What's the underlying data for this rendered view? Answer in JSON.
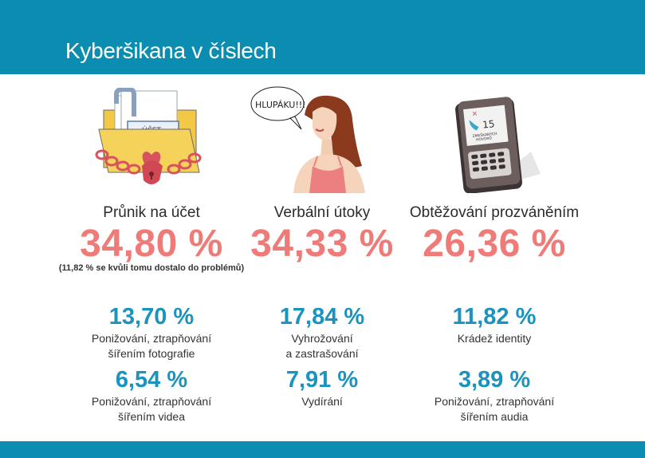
{
  "header": {
    "title": "Kyberšikana v číslech"
  },
  "colors": {
    "header_bg": "#0a8db0",
    "big_pct": "#ef7b78",
    "small_pct": "#1a93be"
  },
  "columns": [
    {
      "icon": "locked-folder-icon",
      "icon_text": {
        "title": "ÚČET",
        "field1": "JMÉNO",
        "field2": "HESLO"
      },
      "label": "Průnik na účet",
      "percent": "34,80 %",
      "note": "(11,82 % se kvůli tomu dostalo do problémů)"
    },
    {
      "icon": "woman-speech-bubble-icon",
      "icon_text": {
        "bubble": "HLUPÁKU!!!"
      },
      "label": "Verbální útoky",
      "percent": "34,33 %"
    },
    {
      "icon": "phone-missed-calls-icon",
      "icon_text": {
        "count": "15",
        "line1": "ZMEŠKANÝCH",
        "line2": "HOVORŮ"
      },
      "label": "Obtěžování prozváněním",
      "percent": "26,36 %"
    }
  ],
  "stats": [
    {
      "value": "13,70 %",
      "line1": "Ponižování, ztrapňování",
      "line2": "šířením fotografie"
    },
    {
      "value": "17,84 %",
      "line1": "Vyhrožování",
      "line2": "a zastrašování"
    },
    {
      "value": "11,82 %",
      "line1": "Krádež identity",
      "line2": ""
    },
    {
      "value": "6,54 %",
      "line1": "Ponižování, ztrapňování",
      "line2": "šířením videa"
    },
    {
      "value": "7,91 %",
      "line1": "Vydírání",
      "line2": ""
    },
    {
      "value": "3,89 %",
      "line1": "Ponižování, ztrapňování",
      "line2": "šířením audia"
    }
  ]
}
